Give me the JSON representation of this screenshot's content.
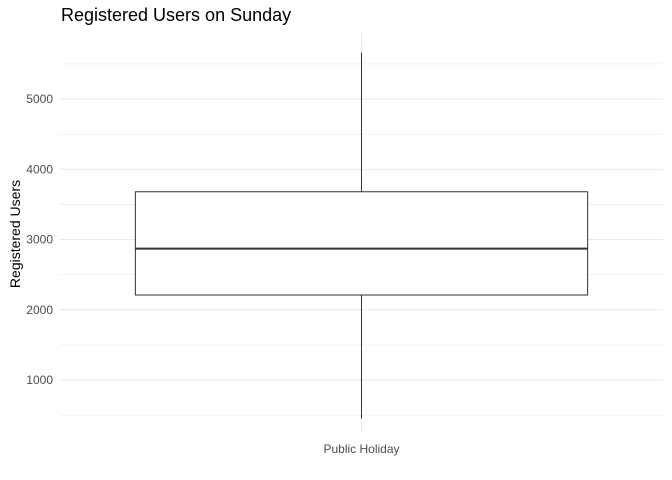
{
  "chart_data": {
    "type": "boxplot",
    "title": "Registered Users on Sunday",
    "xlabel": "",
    "ylabel": "Registered Users",
    "categories": [
      "Public Holiday"
    ],
    "boxes": [
      {
        "category": "Public Holiday",
        "min": 450,
        "q1": 2210,
        "median": 2870,
        "q3": 3680,
        "max": 5660
      }
    ],
    "y_ticks": [
      1000,
      2000,
      3000,
      4000,
      5000
    ],
    "ylim": [
      260,
      5940
    ],
    "grid": true,
    "colors": {
      "grid": "#ebebeb",
      "box_stroke": "#333333",
      "box_fill": "#ffffff",
      "tick_text": "#4d4d4d"
    }
  }
}
